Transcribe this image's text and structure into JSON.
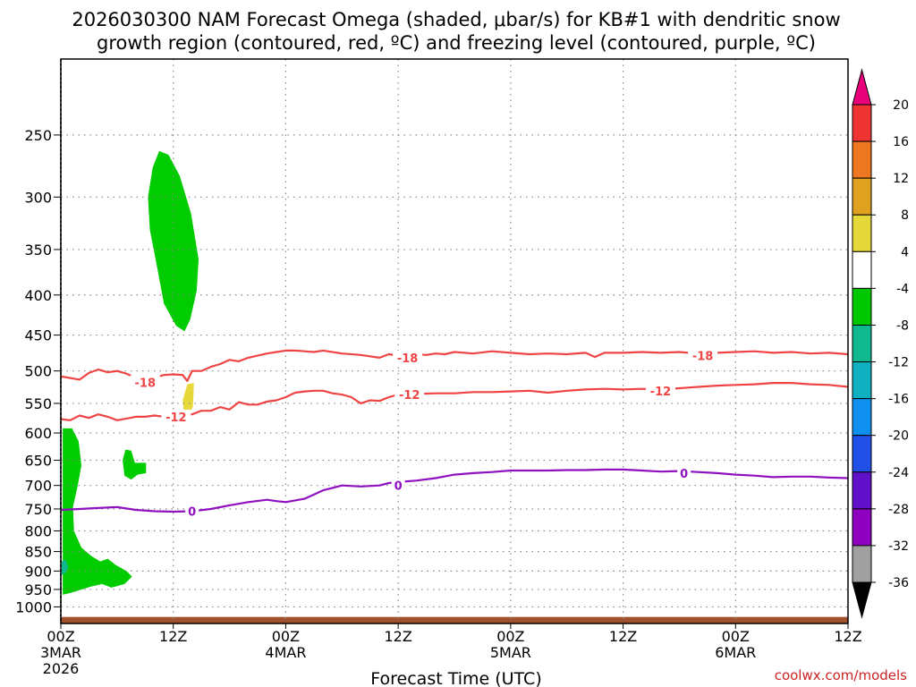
{
  "title_line1": "2026030300 NAM Forecast Omega (shaded, μbar/s) for KB#1 with dendritic snow",
  "title_line2": "growth region (contoured, red, ºC) and freezing level (contoured, purple, ºC)",
  "credit": "coolwx.com/models",
  "chart_data": {
    "type": "area",
    "xlabel": "Forecast Time (UTC)",
    "ylabel": "",
    "y_scale": "log",
    "y_reversed": true,
    "xlim": [
      0,
      84
    ],
    "ylim": [
      1050,
      200
    ],
    "grid": true,
    "x_ticks": [
      {
        "x": 0,
        "label": "00Z",
        "label2": "3MAR",
        "label3": "2026"
      },
      {
        "x": 12,
        "label": "12Z",
        "label2": "",
        "label3": ""
      },
      {
        "x": 24,
        "label": "00Z",
        "label2": "4MAR",
        "label3": ""
      },
      {
        "x": 36,
        "label": "12Z",
        "label2": "",
        "label3": ""
      },
      {
        "x": 48,
        "label": "00Z",
        "label2": "5MAR",
        "label3": ""
      },
      {
        "x": 60,
        "label": "12Z",
        "label2": "",
        "label3": ""
      },
      {
        "x": 72,
        "label": "00Z",
        "label2": "6MAR",
        "label3": ""
      },
      {
        "x": 84,
        "label": "12Z",
        "label2": "",
        "label3": ""
      }
    ],
    "y_ticks": [
      250,
      300,
      350,
      400,
      450,
      500,
      550,
      600,
      650,
      700,
      750,
      800,
      850,
      900,
      950,
      1000
    ],
    "colorbar": {
      "labels": [
        "20",
        "16",
        "12",
        "8",
        "4",
        "-4",
        "-8",
        "-12",
        "-16",
        "-20",
        "-24",
        "-28",
        "-32",
        "-36"
      ],
      "colors": [
        "#e8007a",
        "#ee3333",
        "#ee7722",
        "#e0a020",
        "#e6d83a",
        "#ffffff",
        "#00c800",
        "#10b890",
        "#10b0c0",
        "#1090ee",
        "#2050e6",
        "#6010c8",
        "#9000c0",
        "#a0a0a0",
        "#000000"
      ]
    },
    "omega_regions": [
      {
        "value_range": "-8 to -4",
        "color": "#00cc00",
        "points": [
          [
            9.3,
            300
          ],
          [
            9.8,
            275
          ],
          [
            10.5,
            262
          ],
          [
            11.5,
            265
          ],
          [
            12.7,
            282
          ],
          [
            13.9,
            315
          ],
          [
            14.7,
            360
          ],
          [
            14.5,
            395
          ],
          [
            13.8,
            430
          ],
          [
            13.2,
            445
          ],
          [
            12.3,
            438
          ],
          [
            11.0,
            410
          ],
          [
            10.3,
            370
          ],
          [
            9.5,
            330
          ]
        ]
      },
      {
        "value_range": "4 to 8",
        "color": "#e6d83a",
        "points": [
          [
            13.0,
            545
          ],
          [
            13.5,
            520
          ],
          [
            14.2,
            518
          ],
          [
            14.1,
            555
          ],
          [
            13.7,
            568
          ],
          [
            13.1,
            560
          ]
        ]
      },
      {
        "value_range": "-8 to -4",
        "color": "#00cc00",
        "points": [
          [
            0.2,
            592
          ],
          [
            1.2,
            592
          ],
          [
            1.9,
            615
          ],
          [
            2.2,
            660
          ],
          [
            1.8,
            700
          ],
          [
            1.3,
            745
          ],
          [
            1.4,
            800
          ],
          [
            2.2,
            840
          ],
          [
            3.3,
            862
          ],
          [
            4.2,
            875
          ],
          [
            5.0,
            868
          ],
          [
            5.9,
            885
          ],
          [
            7.0,
            900
          ],
          [
            7.6,
            915
          ],
          [
            6.8,
            935
          ],
          [
            5.4,
            945
          ],
          [
            4.4,
            935
          ],
          [
            3.2,
            942
          ],
          [
            2.0,
            952
          ],
          [
            1.0,
            960
          ],
          [
            0.2,
            965
          ]
        ]
      },
      {
        "value_range": "-8 to -4",
        "color": "#00cc00",
        "points": [
          [
            6.6,
            650
          ],
          [
            6.9,
            630
          ],
          [
            7.5,
            632
          ],
          [
            7.9,
            655
          ],
          [
            9.1,
            655
          ],
          [
            9.1,
            675
          ],
          [
            8.2,
            678
          ],
          [
            7.5,
            688
          ],
          [
            6.8,
            680
          ]
        ]
      },
      {
        "value_range": "-12 to -8",
        "color": "#10b890",
        "points": [
          [
            0.1,
            875
          ],
          [
            0.5,
            870
          ],
          [
            0.8,
            890
          ],
          [
            0.5,
            905
          ],
          [
            0.1,
            910
          ]
        ]
      }
    ],
    "series": [
      {
        "name": "",
        "color": "#ee4444",
        "contour_label": "-18",
        "label_positions": [
          [
            9.0,
            517
          ],
          [
            37.0,
            481
          ],
          [
            68.5,
            478
          ]
        ],
        "x": [
          0,
          2,
          3,
          4,
          5,
          6,
          7,
          8,
          9,
          10,
          11,
          12,
          13,
          13.5,
          14,
          15,
          16,
          17,
          18,
          19,
          20,
          21,
          22,
          23,
          24,
          25,
          26,
          27,
          28,
          30,
          32,
          34,
          35,
          36,
          37,
          38,
          39,
          40,
          41,
          42,
          44,
          46,
          48,
          50,
          52,
          54,
          56,
          57,
          58,
          60,
          62,
          64,
          66,
          68,
          70,
          72,
          74,
          76,
          78,
          80,
          82,
          84
        ],
        "y": [
          508,
          513,
          503,
          498,
          502,
          500,
          504,
          510,
          515,
          510,
          506,
          505,
          506,
          515,
          500,
          500,
          494,
          490,
          484,
          486,
          481,
          478,
          475,
          473,
          471,
          471,
          472,
          473,
          471,
          475,
          477,
          481,
          476,
          478,
          479,
          476,
          477,
          475,
          476,
          473,
          475,
          472,
          474,
          476,
          475,
          476,
          474,
          480,
          474,
          474,
          473,
          474,
          473,
          475,
          474,
          473,
          472,
          474,
          473,
          475,
          474,
          476
        ]
      },
      {
        "name": "",
        "color": "#ee4444",
        "contour_label": "-12",
        "label_positions": [
          [
            12.3,
            572
          ],
          [
            37.2,
            536
          ],
          [
            64.0,
            530
          ]
        ],
        "x": [
          0,
          1,
          2,
          3,
          4,
          5,
          6,
          7,
          8,
          9,
          10,
          11,
          12,
          13,
          14,
          15,
          16,
          17,
          18,
          19,
          20,
          21,
          22,
          23,
          24,
          25,
          26,
          27,
          28,
          29,
          30,
          31,
          32,
          33,
          34,
          35,
          36,
          37,
          38,
          40,
          42,
          44,
          46,
          48,
          50,
          52,
          54,
          56,
          58,
          60,
          62,
          64,
          66,
          68,
          70,
          72,
          74,
          76,
          78,
          80,
          82,
          84
        ],
        "y": [
          576,
          578,
          570,
          574,
          568,
          572,
          578,
          575,
          572,
          572,
          570,
          572,
          570,
          570,
          568,
          562,
          562,
          556,
          560,
          548,
          552,
          552,
          547,
          545,
          540,
          533,
          531,
          530,
          530,
          534,
          536,
          540,
          550,
          545,
          546,
          540,
          536,
          536,
          535,
          534,
          534,
          532,
          532,
          531,
          530,
          533,
          530,
          528,
          527,
          528,
          527,
          528,
          526,
          524,
          522,
          521,
          520,
          518,
          518,
          520,
          521,
          524
        ]
      },
      {
        "name": "",
        "color": "#9010c0",
        "contour_label": "0",
        "label_positions": [
          [
            14.0,
            755
          ],
          [
            36.0,
            700
          ],
          [
            66.5,
            675
          ]
        ],
        "x": [
          0,
          2,
          4,
          6,
          8,
          10,
          12,
          14,
          16,
          18,
          20,
          22,
          23,
          24,
          26,
          28,
          29,
          30,
          32,
          34,
          35,
          36,
          38,
          40,
          42,
          44,
          46,
          48,
          50,
          52,
          54,
          56,
          58,
          60,
          62,
          64,
          66,
          68,
          70,
          72,
          74,
          76,
          78,
          80,
          82,
          84
        ],
        "y": [
          752,
          750,
          748,
          746,
          752,
          755,
          756,
          755,
          750,
          742,
          735,
          730,
          733,
          735,
          728,
          710,
          705,
          700,
          702,
          700,
          695,
          693,
          690,
          685,
          678,
          675,
          673,
          670,
          670,
          670,
          669,
          669,
          668,
          668,
          670,
          672,
          671,
          673,
          675,
          678,
          680,
          683,
          682,
          682,
          684,
          685
        ]
      }
    ],
    "terrain": {
      "color": "#a0522d",
      "top_pressure": 1030,
      "x": [
        0,
        84
      ]
    }
  }
}
